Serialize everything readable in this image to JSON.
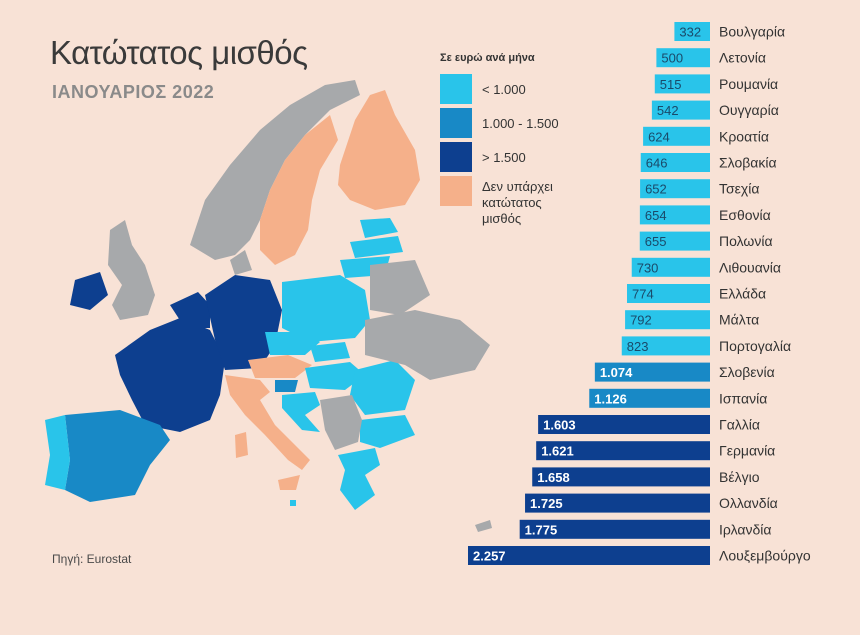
{
  "title": "Κατώτατος μισθός",
  "subtitle": "ΙΑΝΟΥΑΡΙΟΣ 2022",
  "source": "Πηγή: Eurostat",
  "legend": {
    "title": "Σε ευρώ ανά μήνα",
    "items": [
      {
        "label": "< 1.000",
        "color": "#29c4ea"
      },
      {
        "label": "1.000 - 1.500",
        "color": "#1889c6"
      },
      {
        "label": "> 1.500",
        "color": "#0d3f8f"
      },
      {
        "label": "Δεν υπάρχει κατώτατος μισθός",
        "color": "#f5b08a"
      }
    ]
  },
  "colors": {
    "background": "#f8e2d6",
    "low": "#29c4ea",
    "mid": "#1889c6",
    "high": "#0d3f8f",
    "none": "#f5b08a",
    "nodata": "#a7a9ab"
  },
  "chart_data": {
    "type": "bar",
    "orientation": "horizontal",
    "categories": [
      "Βουλγαρία",
      "Λετονία",
      "Ρουμανία",
      "Ουγγαρία",
      "Κροατία",
      "Σλοβακία",
      "Τσεχία",
      "Εσθονία",
      "Πολωνία",
      "Λιθουανία",
      "Ελλάδα",
      "Μάλτα",
      "Πορτογαλία",
      "Σλοβενία",
      "Ισπανία",
      "Γαλλία",
      "Γερμανία",
      "Βέλγιο",
      "Ολλανδία",
      "Ιρλανδία",
      "Λουξεμβούργο"
    ],
    "values": [
      332,
      500,
      515,
      542,
      624,
      646,
      652,
      654,
      655,
      730,
      774,
      792,
      823,
      1074,
      1126,
      1603,
      1621,
      1658,
      1725,
      1775,
      2257
    ],
    "value_labels": [
      "332",
      "500",
      "515",
      "542",
      "624",
      "646",
      "652",
      "654",
      "655",
      "730",
      "774",
      "792",
      "823",
      "1.074",
      "1.126",
      "1.603",
      "1.621",
      "1.658",
      "1.725",
      "1.775",
      "2.257"
    ],
    "unit": "Σε ευρώ ανά μήνα"
  }
}
